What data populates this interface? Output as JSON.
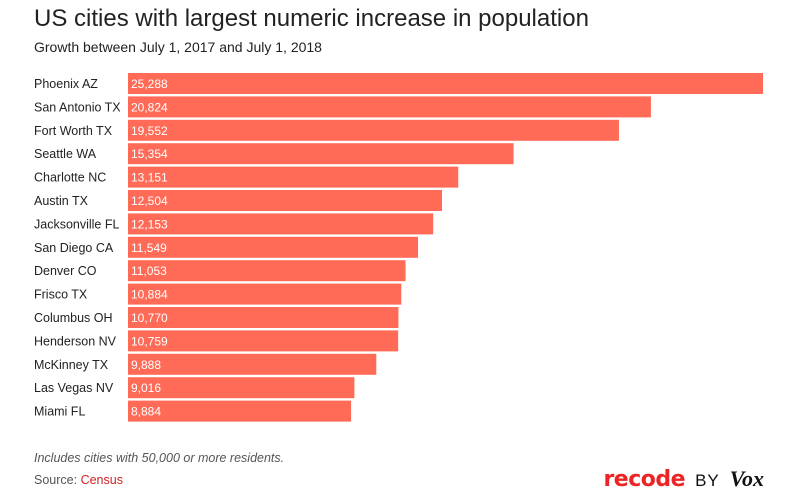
{
  "header": {
    "title": "US cities with largest numeric increase in population",
    "subtitle": "Growth between July 1, 2017 and July 1, 2018"
  },
  "chart_data": {
    "type": "bar",
    "orientation": "horizontal",
    "title": "US cities with largest numeric increase in population",
    "subtitle": "Growth between July 1, 2017 and July 1, 2018",
    "categories": [
      "Phoenix AZ",
      "San Antonio TX",
      "Fort Worth TX",
      "Seattle WA",
      "Charlotte NC",
      "Austin TX",
      "Jacksonville FL",
      "San Diego CA",
      "Denver CO",
      "Frisco TX",
      "Columbus OH",
      "Henderson NV",
      "McKinney TX",
      "Las Vegas NV",
      "Miami FL"
    ],
    "values": [
      25288,
      20824,
      19552,
      15354,
      13151,
      12504,
      12153,
      11549,
      11053,
      10884,
      10770,
      10759,
      9888,
      9016,
      8884
    ],
    "value_labels": [
      "25,288",
      "20,824",
      "19,552",
      "15,354",
      "13,151",
      "12,504",
      "12,153",
      "11,549",
      "11,053",
      "10,884",
      "10,770",
      "10,759",
      "9,888",
      "9,016",
      "8,884"
    ],
    "xlim": [
      0,
      25288
    ],
    "bar_color": "#ff6b57",
    "grid": false,
    "legend": "none"
  },
  "footer": {
    "note": "Includes cities with 50,000 or more residents.",
    "source_prefix": "Source: ",
    "source_link": "Census",
    "source_color": "#d22222"
  },
  "logo": {
    "recode": "recode",
    "by": "BY",
    "vox": "Vox",
    "recode_color": "#ee2424"
  }
}
